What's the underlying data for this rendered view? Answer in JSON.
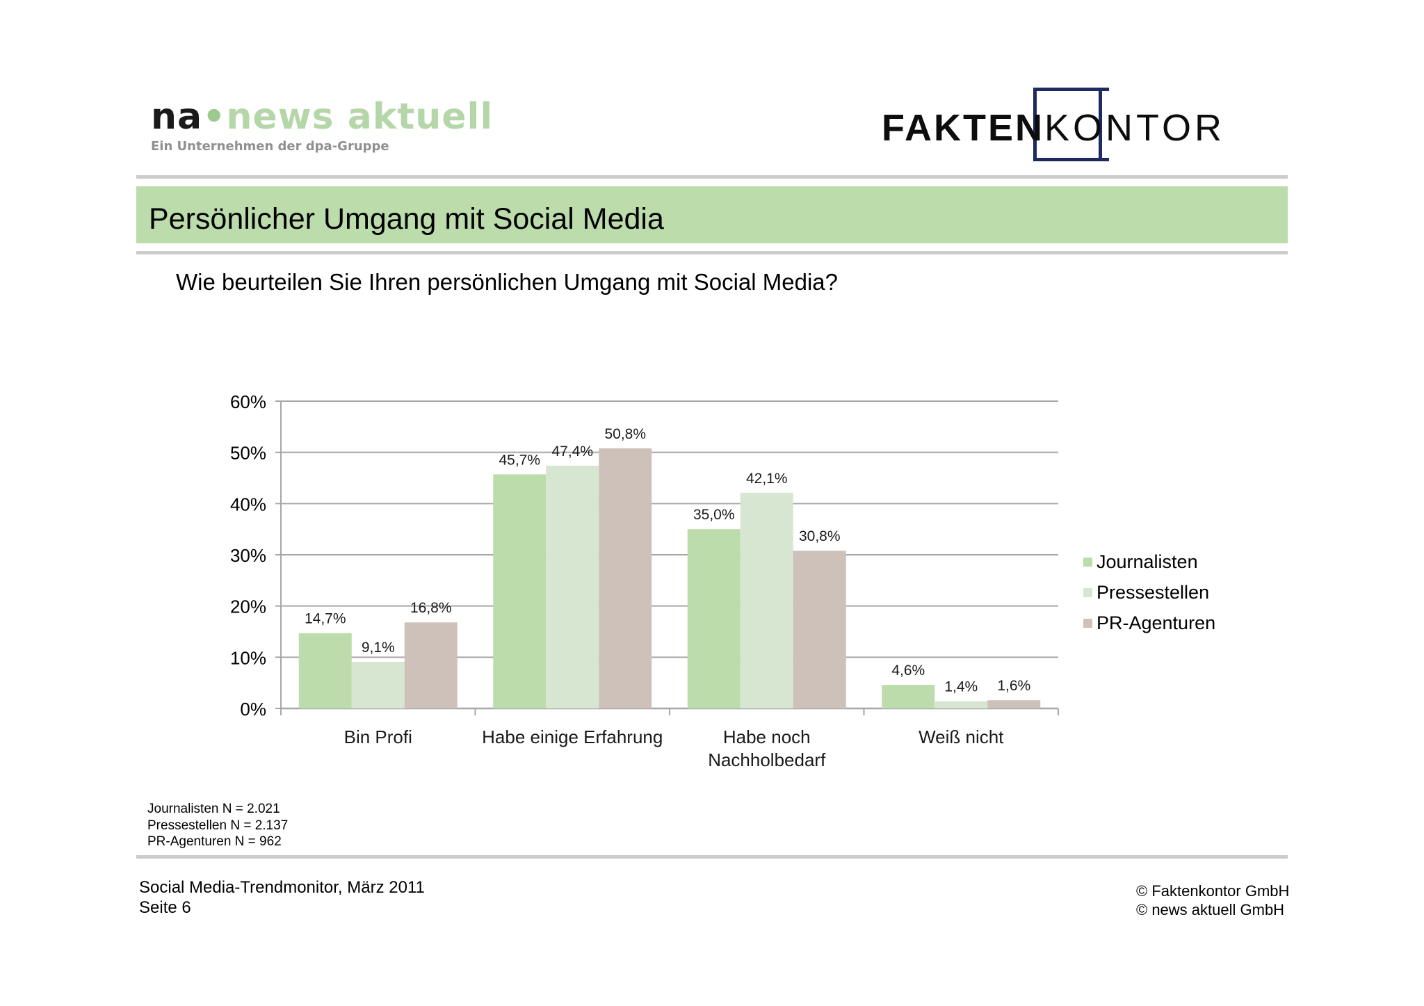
{
  "header": {
    "left_logo": {
      "prefix": "na",
      "name": "news aktuell",
      "tagline": "Ein Unternehmen der dpa-Gruppe"
    },
    "right_logo": {
      "bold_part": "FAKTEN",
      "light_part": "KONTOR"
    }
  },
  "slide": {
    "title": "Persönlicher Umgang mit Social Media",
    "question": "Wie beurteilen Sie Ihren persönlichen Umgang mit Social Media?"
  },
  "colors": {
    "title_band": "#bcdcac",
    "journalisten": "#bcdcac",
    "pressestellen": "#d6e6d0",
    "pr_agenturen": "#cdc1b9",
    "logo_blue": "#1f2a60"
  },
  "chart_data": {
    "type": "bar",
    "categories": [
      "Bin Profi",
      "Habe einige Erfahrung",
      "Habe noch Nachholbedarf",
      "Weiß nicht"
    ],
    "series": [
      {
        "name": "Journalisten",
        "values": [
          14.7,
          45.7,
          35.0,
          4.6
        ],
        "labels": [
          "14,7%",
          "45,7%",
          "35,0%",
          "4,6%"
        ]
      },
      {
        "name": "Pressestellen",
        "values": [
          9.1,
          47.4,
          42.1,
          1.4
        ],
        "labels": [
          "9,1%",
          "47,4%",
          "42,1%",
          "1,4%"
        ]
      },
      {
        "name": "PR-Agenturen",
        "values": [
          16.8,
          50.8,
          30.8,
          1.6
        ],
        "labels": [
          "16,8%",
          "50,8%",
          "30,8%",
          "1,6%"
        ]
      }
    ],
    "ylim": [
      0,
      60
    ],
    "yticks": [
      "0%",
      "10%",
      "20%",
      "30%",
      "40%",
      "50%",
      "60%"
    ],
    "grid": true,
    "legend_position": "right"
  },
  "notes": [
    "Journalisten N = 2.021",
    "Pressestellen N = 2.137",
    "PR-Agenturen N = 962"
  ],
  "footer": {
    "source": "Social Media-Trendmonitor, März 2011",
    "page": "Seite 6",
    "copyright_1": "© Faktenkontor GmbH",
    "copyright_2": "© news aktuell GmbH"
  }
}
